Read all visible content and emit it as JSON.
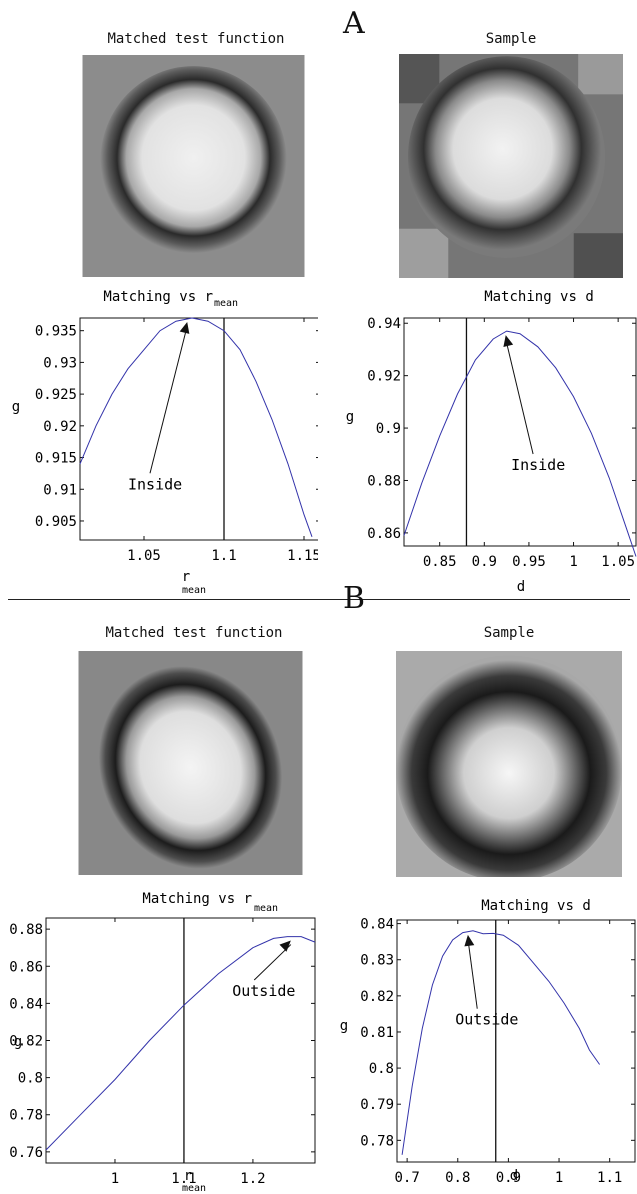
{
  "panels": [
    {
      "letter": "A",
      "left_image_title": "Matched test function",
      "right_image_title": "Sample",
      "left_image_icon": "bright-disc-with-dark-ring-pixel-image",
      "right_image_icon": "textured-bright-disc-pixel-image"
    },
    {
      "letter": "B",
      "left_image_title": "Matched test function",
      "right_image_title": "Sample",
      "left_image_icon": "tilted-bright-disc-with-dark-ring-pixel-image",
      "right_image_icon": "bright-blob-with-thick-dark-ring-pixel-image"
    }
  ],
  "chart_data": [
    {
      "type": "line",
      "panel": "A",
      "title_main": "Matching vs r",
      "title_sub": "mean",
      "xlabel_main": "r",
      "xlabel_sub": "mean",
      "ylabel": "g",
      "xlim": [
        1.01,
        1.16
      ],
      "ylim": [
        0.902,
        0.937
      ],
      "xticks": [
        1.05,
        1.1,
        1.15
      ],
      "xtick_labels": [
        "1.05",
        "1.1",
        "1.15"
      ],
      "yticks": [
        0.905,
        0.91,
        0.915,
        0.92,
        0.925,
        0.93,
        0.935
      ],
      "ytick_labels": [
        "0.905",
        "0.91",
        "0.915",
        "0.92",
        "0.925",
        "0.93",
        "0.935"
      ],
      "vline_x": 1.1,
      "line_color": "#3333aa",
      "series": [
        {
          "x": [
            1.01,
            1.02,
            1.03,
            1.04,
            1.05,
            1.06,
            1.07,
            1.08,
            1.09,
            1.1,
            1.11,
            1.12,
            1.13,
            1.14,
            1.15,
            1.155
          ],
          "y": [
            0.914,
            0.92,
            0.925,
            0.929,
            0.932,
            0.935,
            0.9365,
            0.937,
            0.9365,
            0.935,
            0.932,
            0.927,
            0.921,
            0.914,
            0.906,
            0.9025
          ]
        }
      ],
      "annotation": {
        "text": "Inside",
        "arrow_to": [
          1.077,
          0.937
        ],
        "text_at": [
          1.04,
          0.91
        ]
      }
    },
    {
      "type": "line",
      "panel": "A",
      "title": "Matching vs d",
      "xlabel": "d",
      "ylabel": "g",
      "xlim": [
        0.81,
        1.07
      ],
      "ylim": [
        0.855,
        0.942
      ],
      "xticks": [
        0.85,
        0.9,
        0.95,
        1.0,
        1.05
      ],
      "xtick_labels": [
        "0.85",
        "0.9",
        "0.95",
        "1",
        "1.05"
      ],
      "yticks": [
        0.86,
        0.88,
        0.9,
        0.92,
        0.94
      ],
      "ytick_labels": [
        "0.86",
        "0.88",
        "0.9",
        "0.92",
        "0.94"
      ],
      "vline_x": 0.88,
      "line_color": "#3333aa",
      "series": [
        {
          "x": [
            0.81,
            0.83,
            0.85,
            0.87,
            0.89,
            0.91,
            0.925,
            0.94,
            0.96,
            0.98,
            1.0,
            1.02,
            1.04,
            1.06,
            1.07
          ],
          "y": [
            0.859,
            0.879,
            0.897,
            0.913,
            0.926,
            0.934,
            0.937,
            0.936,
            0.931,
            0.923,
            0.912,
            0.898,
            0.881,
            0.861,
            0.851
          ]
        }
      ],
      "annotation": {
        "text": "Inside",
        "arrow_to": [
          0.924,
          0.937
        ],
        "text_at": [
          0.93,
          0.884
        ]
      }
    },
    {
      "type": "line",
      "panel": "B",
      "title_main": "Matching vs r",
      "title_sub": "mean",
      "xlabel_main": "r",
      "xlabel_sub": "mean",
      "ylabel": "g",
      "xlim": [
        0.9,
        1.29
      ],
      "ylim": [
        0.754,
        0.886
      ],
      "xticks": [
        1.0,
        1.1,
        1.2
      ],
      "xtick_labels": [
        "1",
        "1.1",
        "1.2"
      ],
      "yticks": [
        0.76,
        0.78,
        0.8,
        0.82,
        0.84,
        0.86,
        0.88
      ],
      "ytick_labels": [
        "0.76",
        "0.78",
        "0.8",
        "0.82",
        "0.84",
        "0.86",
        "0.88"
      ],
      "vline_x": 1.1,
      "line_color": "#3333aa",
      "series": [
        {
          "x": [
            0.9,
            0.95,
            1.0,
            1.05,
            1.1,
            1.15,
            1.2,
            1.23,
            1.25,
            1.27,
            1.29
          ],
          "y": [
            0.761,
            0.78,
            0.799,
            0.82,
            0.839,
            0.856,
            0.87,
            0.875,
            0.876,
            0.876,
            0.873
          ]
        }
      ],
      "annotation": {
        "text": "Outside",
        "arrow_to": [
          1.255,
          0.876
        ],
        "text_at": [
          1.17,
          0.844
        ]
      }
    },
    {
      "type": "line",
      "panel": "B",
      "title": "Matching vs d",
      "xlabel": "d",
      "ylabel": "g",
      "xlim": [
        0.68,
        1.15
      ],
      "ylim": [
        0.774,
        0.841
      ],
      "xticks": [
        0.7,
        0.8,
        0.9,
        1.0,
        1.1
      ],
      "xtick_labels": [
        "0.7",
        "0.8",
        "0.9",
        "1",
        "1.1"
      ],
      "yticks": [
        0.78,
        0.79,
        0.8,
        0.81,
        0.82,
        0.83,
        0.84
      ],
      "ytick_labels": [
        "0.78",
        "0.79",
        "0.8",
        "0.81",
        "0.82",
        "0.83",
        "0.84"
      ],
      "vline_x": 0.875,
      "line_color": "#3333aa",
      "series": [
        {
          "x": [
            0.69,
            0.71,
            0.73,
            0.75,
            0.77,
            0.79,
            0.81,
            0.83,
            0.85,
            0.87,
            0.89,
            0.92,
            0.95,
            0.98,
            1.01,
            1.04,
            1.06,
            1.08
          ],
          "y": [
            0.776,
            0.795,
            0.811,
            0.823,
            0.831,
            0.8355,
            0.8375,
            0.838,
            0.8372,
            0.8373,
            0.8368,
            0.834,
            0.829,
            0.824,
            0.818,
            0.811,
            0.805,
            0.801
          ]
        }
      ],
      "annotation": {
        "text": "Outside",
        "arrow_to": [
          0.82,
          0.838
        ],
        "text_at": [
          0.795,
          0.812
        ]
      }
    }
  ]
}
